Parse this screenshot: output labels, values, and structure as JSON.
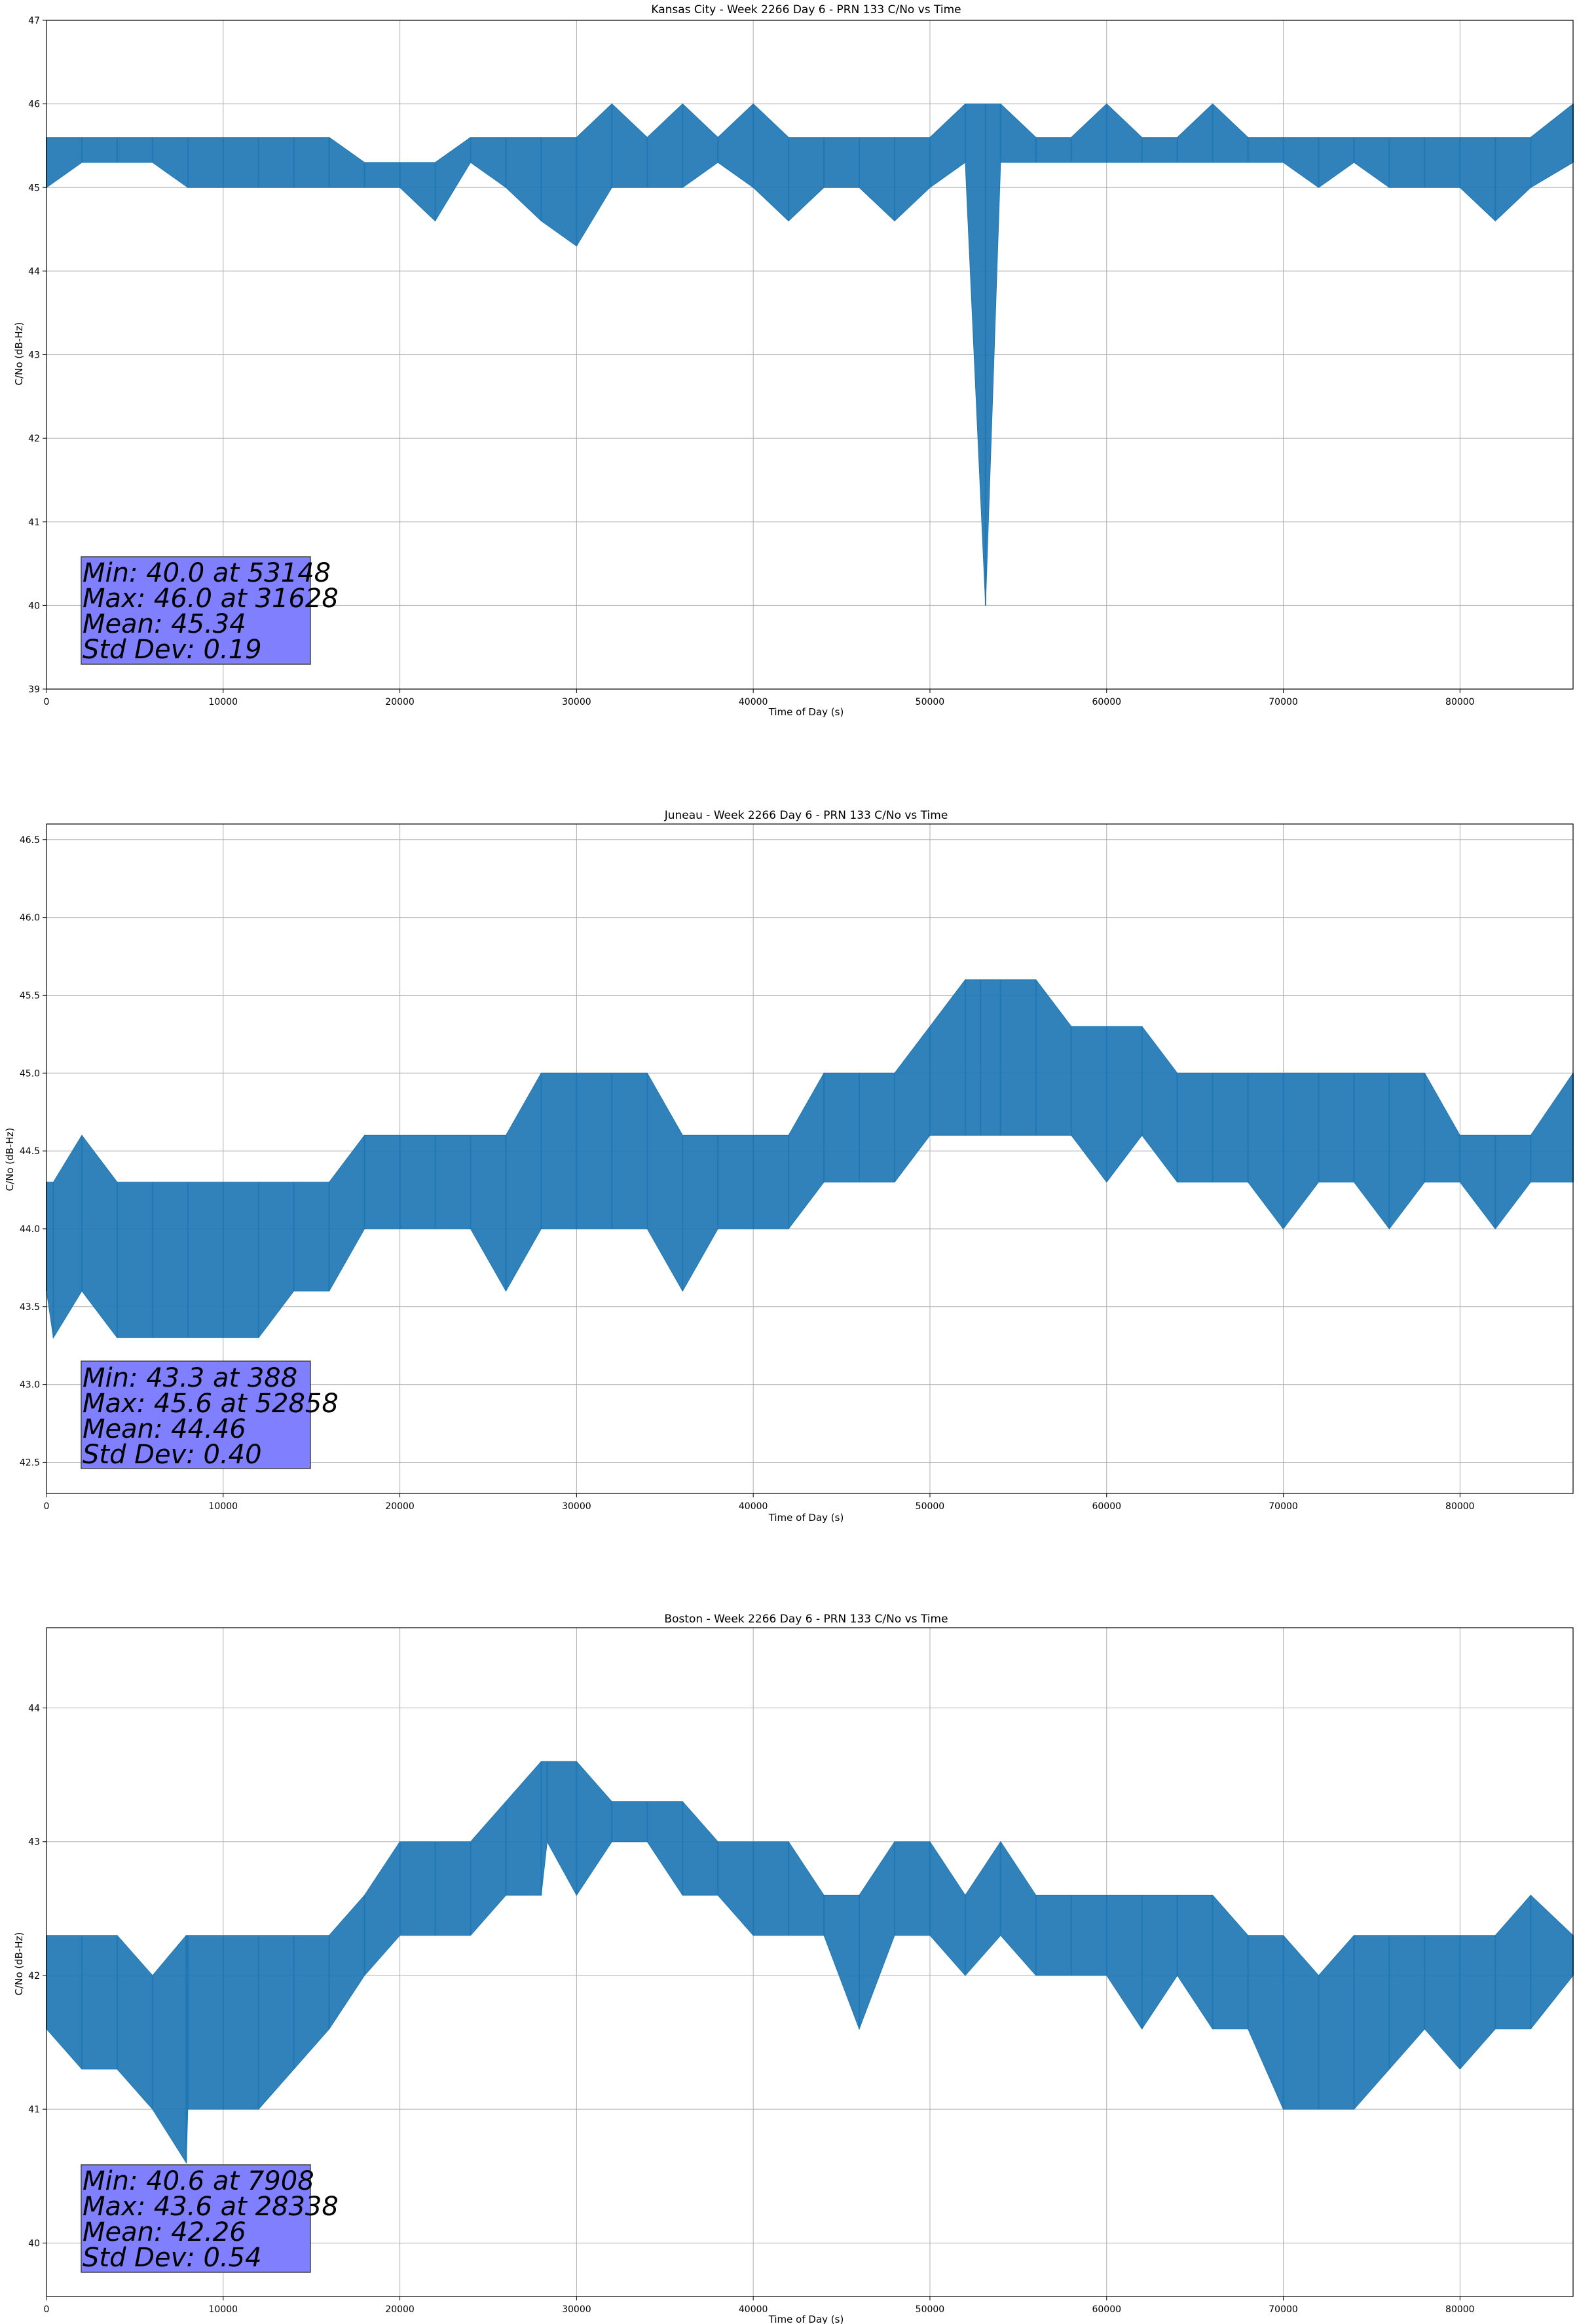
{
  "chart_data": [
    {
      "type": "line",
      "title": "Kansas City - Week 2266 Day 6 - PRN 133 C/No vs Time",
      "xlabel": "Time of Day (s)",
      "ylabel": "C/No (dB-Hz)",
      "xlim": [
        0,
        86400
      ],
      "ylim": [
        39,
        47
      ],
      "x_ticks": [
        0,
        10000,
        20000,
        30000,
        40000,
        50000,
        60000,
        70000,
        80000
      ],
      "y_ticks": [
        39,
        40,
        41,
        42,
        43,
        44,
        45,
        46,
        47
      ],
      "y_tick_labels": [
        "39",
        "40",
        "41",
        "42",
        "43",
        "44",
        "45",
        "46",
        "47"
      ],
      "grid": true,
      "line_color": "#1f77b4",
      "series": [
        {
          "x": [
            0,
            2000,
            4000,
            6000,
            8000,
            10000,
            12000,
            14000,
            16000,
            18000,
            20000,
            22000,
            24000,
            26000,
            28000,
            30000,
            32000,
            34000,
            36000,
            38000,
            40000,
            42000,
            44000,
            46000,
            48000,
            50000,
            52000,
            53148,
            54000,
            56000,
            58000,
            60000,
            62000,
            64000,
            66000,
            68000,
            70000,
            72000,
            74000,
            76000,
            78000,
            80000,
            82000,
            84000,
            86400
          ],
          "low": [
            45.0,
            45.3,
            45.3,
            45.3,
            45.0,
            45.0,
            45.0,
            45.0,
            45.0,
            45.0,
            45.0,
            44.6,
            45.3,
            45.0,
            44.6,
            44.3,
            45.0,
            45.0,
            45.0,
            45.3,
            45.0,
            44.6,
            45.0,
            45.0,
            44.6,
            45.0,
            45.3,
            40.0,
            45.3,
            45.3,
            45.3,
            45.3,
            45.3,
            45.3,
            45.3,
            45.3,
            45.3,
            45.0,
            45.3,
            45.0,
            45.0,
            45.0,
            44.6,
            45.0,
            45.3
          ],
          "high": [
            45.6,
            45.6,
            45.6,
            45.6,
            45.6,
            45.6,
            45.6,
            45.6,
            45.6,
            45.3,
            45.3,
            45.3,
            45.6,
            45.6,
            45.6,
            45.6,
            46.0,
            45.6,
            46.0,
            45.6,
            46.0,
            45.6,
            45.6,
            45.6,
            45.6,
            45.6,
            46.0,
            46.0,
            46.0,
            45.6,
            45.6,
            46.0,
            45.6,
            45.6,
            46.0,
            45.6,
            45.6,
            45.6,
            45.6,
            45.6,
            45.6,
            45.6,
            45.6,
            45.6,
            46.0
          ]
        }
      ],
      "stats": [
        "Min: 40.0 at 53148",
        "Max: 46.0 at 31628",
        "Mean: 45.34",
        "Std Dev: 0.19"
      ]
    },
    {
      "type": "line",
      "title": "Juneau - Week 2266 Day 6 - PRN 133 C/No vs Time",
      "xlabel": "Time of Day (s)",
      "ylabel": "C/No (dB-Hz)",
      "xlim": [
        0,
        86400
      ],
      "ylim": [
        42.3,
        46.6
      ],
      "x_ticks": [
        0,
        10000,
        20000,
        30000,
        40000,
        50000,
        60000,
        70000,
        80000
      ],
      "y_ticks": [
        42.5,
        43.0,
        43.5,
        44.0,
        44.5,
        45.0,
        45.5,
        46.0,
        46.5
      ],
      "y_tick_labels": [
        "42.5",
        "43.0",
        "43.5",
        "44.0",
        "44.5",
        "45.0",
        "45.5",
        "46.0",
        "46.5"
      ],
      "grid": true,
      "line_color": "#1f77b4",
      "series": [
        {
          "x": [
            0,
            388,
            2000,
            4000,
            6000,
            8000,
            10000,
            12000,
            14000,
            16000,
            18000,
            20000,
            22000,
            24000,
            26000,
            28000,
            30000,
            32000,
            34000,
            36000,
            38000,
            40000,
            42000,
            44000,
            46000,
            48000,
            50000,
            52000,
            52858,
            54000,
            56000,
            58000,
            60000,
            62000,
            64000,
            66000,
            68000,
            70000,
            72000,
            74000,
            76000,
            78000,
            80000,
            82000,
            84000,
            86400
          ],
          "low": [
            43.6,
            43.3,
            43.6,
            43.3,
            43.3,
            43.3,
            43.3,
            43.3,
            43.6,
            43.6,
            44.0,
            44.0,
            44.0,
            44.0,
            43.6,
            44.0,
            44.0,
            44.0,
            44.0,
            43.6,
            44.0,
            44.0,
            44.0,
            44.3,
            44.3,
            44.3,
            44.6,
            44.6,
            44.6,
            44.6,
            44.6,
            44.6,
            44.3,
            44.6,
            44.3,
            44.3,
            44.3,
            44.0,
            44.3,
            44.3,
            44.0,
            44.3,
            44.3,
            44.0,
            44.3,
            44.3
          ],
          "high": [
            44.3,
            44.3,
            44.6,
            44.3,
            44.3,
            44.3,
            44.3,
            44.3,
            44.3,
            44.3,
            44.6,
            44.6,
            44.6,
            44.6,
            44.6,
            45.0,
            45.0,
            45.0,
            45.0,
            44.6,
            44.6,
            44.6,
            44.6,
            45.0,
            45.0,
            45.0,
            45.3,
            45.6,
            45.6,
            45.6,
            45.6,
            45.3,
            45.3,
            45.3,
            45.0,
            45.0,
            45.0,
            45.0,
            45.0,
            45.0,
            45.0,
            45.0,
            44.6,
            44.6,
            44.6,
            45.0
          ]
        }
      ],
      "stats": [
        "Min: 43.3 at 388",
        "Max: 45.6 at 52858",
        "Mean: 44.46",
        "Std Dev: 0.40"
      ]
    },
    {
      "type": "line",
      "title": "Boston - Week 2266 Day 6 - PRN 133 C/No vs Time",
      "xlabel": "Time of Day (s)",
      "ylabel": "C/No (dB-Hz)",
      "xlim": [
        0,
        86400
      ],
      "ylim": [
        39.6,
        44.6
      ],
      "x_ticks": [
        0,
        10000,
        20000,
        30000,
        40000,
        50000,
        60000,
        70000,
        80000
      ],
      "y_ticks": [
        40,
        41,
        42,
        43,
        44
      ],
      "y_tick_labels": [
        "40",
        "41",
        "42",
        "43",
        "44"
      ],
      "grid": true,
      "line_color": "#1f77b4",
      "series": [
        {
          "x": [
            0,
            2000,
            4000,
            6000,
            7908,
            8000,
            10000,
            12000,
            14000,
            16000,
            18000,
            20000,
            22000,
            24000,
            26000,
            28000,
            28338,
            30000,
            32000,
            34000,
            36000,
            38000,
            40000,
            42000,
            44000,
            46000,
            48000,
            50000,
            52000,
            54000,
            56000,
            58000,
            60000,
            62000,
            64000,
            66000,
            68000,
            70000,
            72000,
            74000,
            76000,
            78000,
            80000,
            82000,
            84000,
            86400
          ],
          "low": [
            41.6,
            41.3,
            41.3,
            41.0,
            40.6,
            41.0,
            41.0,
            41.0,
            41.3,
            41.6,
            42.0,
            42.3,
            42.3,
            42.3,
            42.6,
            42.6,
            43.0,
            42.6,
            43.0,
            43.0,
            42.6,
            42.6,
            42.3,
            42.3,
            42.3,
            41.6,
            42.3,
            42.3,
            42.0,
            42.3,
            42.0,
            42.0,
            42.0,
            41.6,
            42.0,
            41.6,
            41.6,
            41.0,
            41.0,
            41.0,
            41.3,
            41.6,
            41.3,
            41.6,
            41.6,
            42.0
          ],
          "high": [
            42.3,
            42.3,
            42.3,
            42.0,
            42.3,
            42.3,
            42.3,
            42.3,
            42.3,
            42.3,
            42.6,
            43.0,
            43.0,
            43.0,
            43.3,
            43.6,
            43.6,
            43.6,
            43.3,
            43.3,
            43.3,
            43.0,
            43.0,
            43.0,
            42.6,
            42.6,
            43.0,
            43.0,
            42.6,
            43.0,
            42.6,
            42.6,
            42.6,
            42.6,
            42.6,
            42.6,
            42.3,
            42.3,
            42.0,
            42.3,
            42.3,
            42.3,
            42.3,
            42.3,
            42.6,
            42.3
          ]
        }
      ],
      "stats": [
        "Min: 40.6 at 7908",
        "Max: 43.6 at 28338",
        "Mean: 42.26",
        "Std Dev: 0.54"
      ]
    }
  ]
}
